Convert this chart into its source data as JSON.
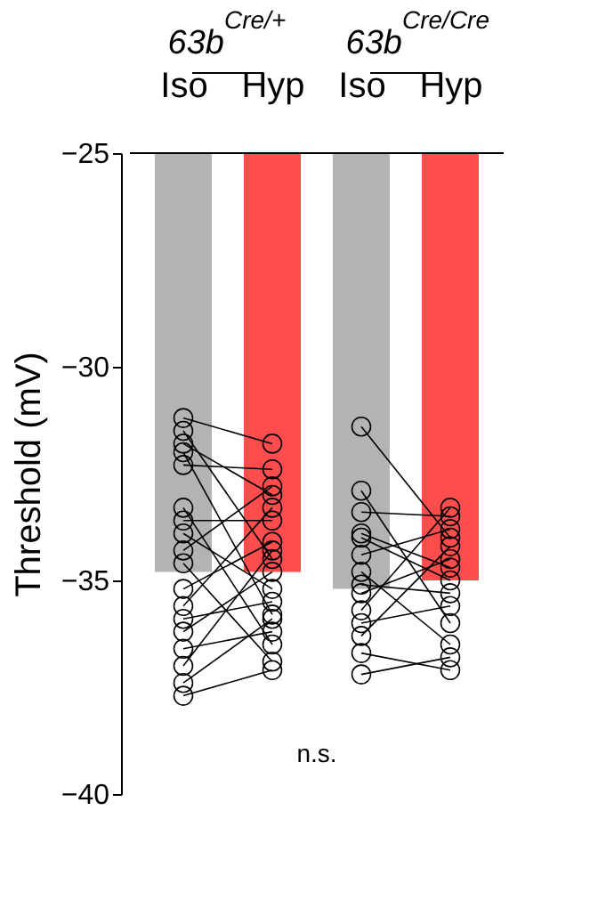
{
  "chart_data": {
    "type": "bar",
    "categories": [
      "Iso",
      "Hyp",
      "Iso",
      "Hyp"
    ],
    "values": [
      -34.8,
      -34.8,
      -35.2,
      -35.0
    ],
    "colors": [
      "#b3b3b3",
      "#ff4d4d",
      "#b3b3b3",
      "#ff4d4d"
    ],
    "ylabel": "Threshold (mV)",
    "ylim": [
      -40,
      -25
    ],
    "yticks": [
      -25,
      -30,
      -35,
      -40
    ],
    "grid": false,
    "marker": "circle",
    "line_style": "solid",
    "annotations": [
      "63b$^{Cre/+}$",
      "63b$^{Cre/Cre}$",
      "n.s."
    ],
    "series": [
      {
        "type": "line",
        "color": "#000000",
        "values": [
          -31.2,
          -31.8,
          null,
          null
        ]
      },
      {
        "type": "line",
        "color": "#000000",
        "values": [
          -31.5,
          -34.5,
          null,
          null
        ]
      },
      {
        "type": "line",
        "color": "#000000",
        "values": [
          -31.8,
          -33.0,
          null,
          null
        ]
      },
      {
        "type": "line",
        "color": "#000000",
        "values": [
          -32.0,
          -35.8,
          null,
          null
        ]
      },
      {
        "type": "line",
        "color": "#000000",
        "values": [
          -32.3,
          -32.4,
          null,
          null
        ]
      },
      {
        "type": "line",
        "color": "#000000",
        "values": [
          -33.3,
          -36.5,
          null,
          null
        ]
      },
      {
        "type": "line",
        "color": "#000000",
        "values": [
          -33.6,
          -33.6,
          null,
          null
        ]
      },
      {
        "type": "line",
        "color": "#000000",
        "values": [
          -33.9,
          -35.2,
          null,
          null
        ]
      },
      {
        "type": "line",
        "color": "#000000",
        "values": [
          -34.3,
          -32.8,
          null,
          null
        ]
      },
      {
        "type": "line",
        "color": "#000000",
        "values": [
          -34.6,
          -36.9,
          null,
          null
        ]
      },
      {
        "type": "line",
        "color": "#000000",
        "values": [
          -35.2,
          -34.1,
          null,
          null
        ]
      },
      {
        "type": "line",
        "color": "#000000",
        "values": [
          -35.6,
          -33.3,
          null,
          null
        ]
      },
      {
        "type": "line",
        "color": "#000000",
        "values": [
          -35.9,
          -35.5,
          null,
          null
        ]
      },
      {
        "type": "line",
        "color": "#000000",
        "values": [
          -36.2,
          -34.8,
          null,
          null
        ]
      },
      {
        "type": "line",
        "color": "#000000",
        "values": [
          -36.6,
          -36.2,
          null,
          null
        ]
      },
      {
        "type": "line",
        "color": "#000000",
        "values": [
          -37.0,
          -34.3,
          null,
          null
        ]
      },
      {
        "type": "line",
        "color": "#000000",
        "values": [
          -37.4,
          -35.9,
          null,
          null
        ]
      },
      {
        "type": "line",
        "color": "#000000",
        "values": [
          -37.7,
          -37.1,
          null,
          null
        ]
      },
      {
        "type": "line",
        "color": "#000000",
        "values": [
          null,
          null,
          -31.4,
          -34.0
        ]
      },
      {
        "type": "line",
        "color": "#000000",
        "values": [
          null,
          null,
          -32.9,
          -36.0
        ]
      },
      {
        "type": "line",
        "color": "#000000",
        "values": [
          null,
          null,
          -33.4,
          -33.5
        ]
      },
      {
        "type": "line",
        "color": "#000000",
        "values": [
          null,
          null,
          -33.9,
          -34.7
        ]
      },
      {
        "type": "line",
        "color": "#000000",
        "values": [
          null,
          null,
          -34.0,
          -35.0
        ]
      },
      {
        "type": "line",
        "color": "#000000",
        "values": [
          null,
          null,
          -34.4,
          -33.8
        ]
      },
      {
        "type": "line",
        "color": "#000000",
        "values": [
          null,
          null,
          -34.8,
          -36.5
        ]
      },
      {
        "type": "line",
        "color": "#000000",
        "values": [
          null,
          null,
          -35.1,
          -35.3
        ]
      },
      {
        "type": "line",
        "color": "#000000",
        "values": [
          null,
          null,
          -35.3,
          -34.5
        ]
      },
      {
        "type": "line",
        "color": "#000000",
        "values": [
          null,
          null,
          -35.7,
          -33.3
        ]
      },
      {
        "type": "line",
        "color": "#000000",
        "values": [
          null,
          null,
          -36.0,
          -35.6
        ]
      },
      {
        "type": "line",
        "color": "#000000",
        "values": [
          null,
          null,
          -36.3,
          -34.2
        ]
      },
      {
        "type": "line",
        "color": "#000000",
        "values": [
          null,
          null,
          -36.7,
          -37.1
        ]
      },
      {
        "type": "line",
        "color": "#000000",
        "values": [
          null,
          null,
          -37.2,
          -36.8
        ]
      }
    ]
  }
}
